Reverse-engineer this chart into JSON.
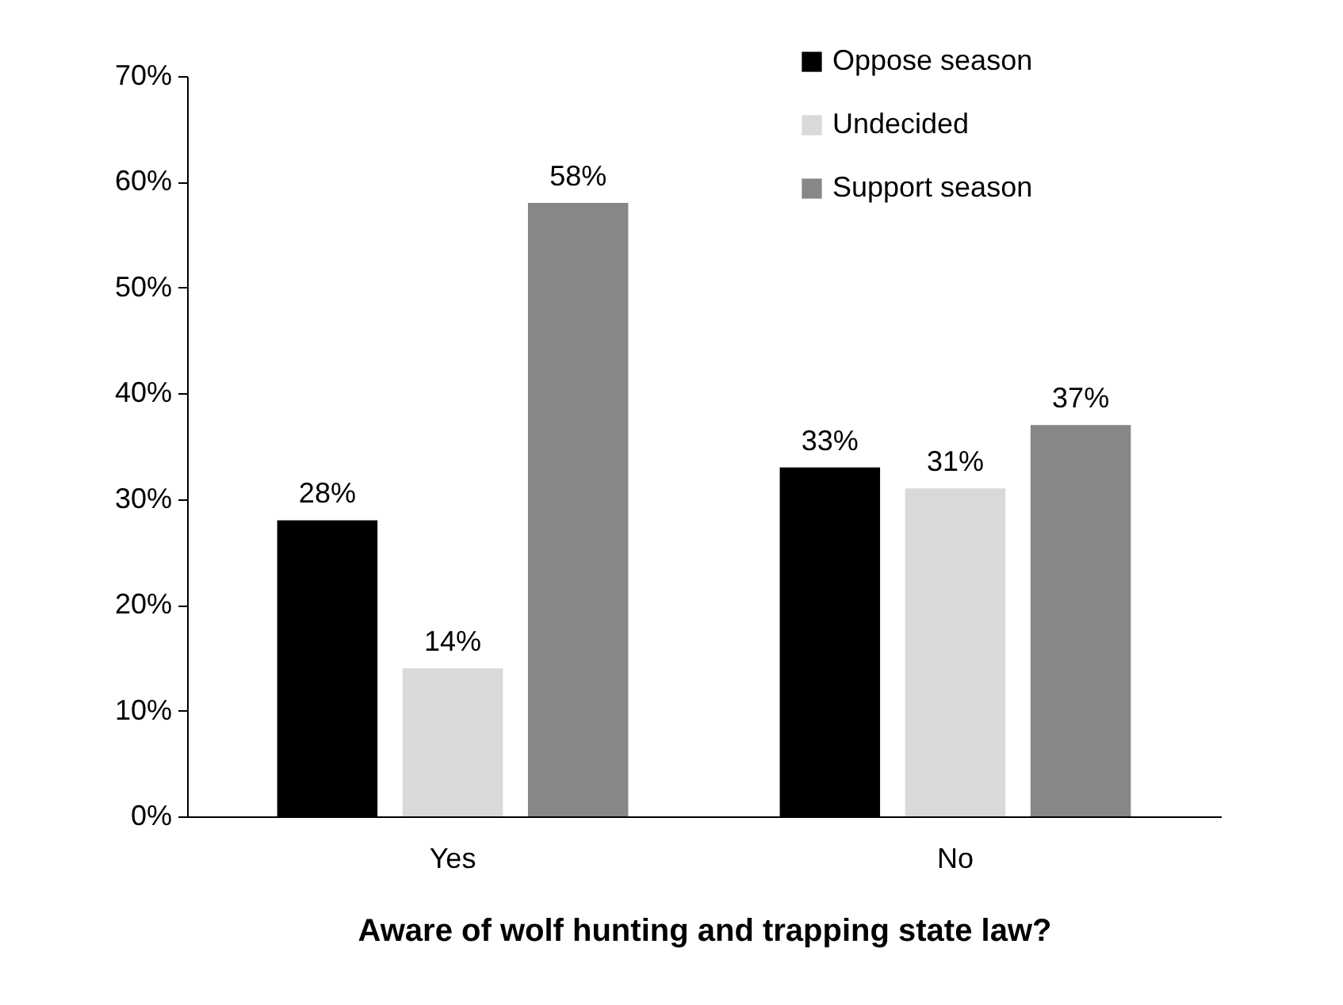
{
  "chart_data": {
    "type": "bar",
    "xlabel": "Aware of wolf hunting and trapping state law?",
    "categories": [
      "Yes",
      "No"
    ],
    "series": [
      {
        "name": "Oppose season",
        "color": "#000000",
        "values": [
          28,
          33
        ],
        "value_labels": [
          "28%",
          "33%"
        ]
      },
      {
        "name": "Undecided",
        "color": "#d9d9d9",
        "values": [
          14,
          31
        ],
        "value_labels": [
          "14%",
          "31%"
        ]
      },
      {
        "name": "Support season",
        "color": "#878787",
        "values": [
          58,
          37
        ],
        "value_labels": [
          "58%",
          "37%"
        ]
      }
    ],
    "ylim": [
      0,
      70
    ],
    "yticks": [
      {
        "value": 0,
        "label": "0%"
      },
      {
        "value": 10,
        "label": "10%"
      },
      {
        "value": 20,
        "label": "20%"
      },
      {
        "value": 30,
        "label": "30%"
      },
      {
        "value": 40,
        "label": "40%"
      },
      {
        "value": 50,
        "label": "50%"
      },
      {
        "value": 60,
        "label": "60%"
      },
      {
        "value": 70,
        "label": "70%"
      }
    ],
    "legend": "top right",
    "grid": false
  }
}
